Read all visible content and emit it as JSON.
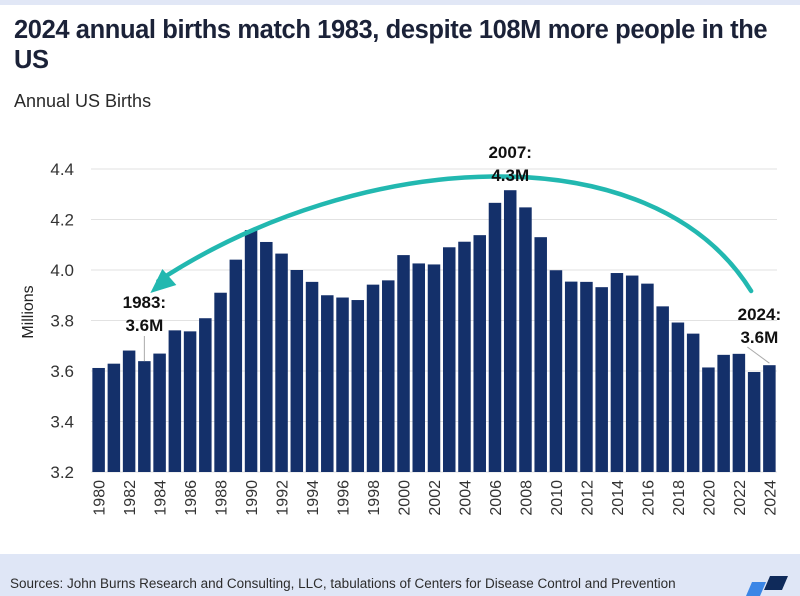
{
  "header": {
    "title": "2024 annual births match 1983, despite 108M more people in the US",
    "subtitle": "Annual US Births"
  },
  "footer": {
    "source": "Sources: John Burns Research and Consulting, LLC, tabulations of Centers for Disease Control and Prevention",
    "logo": "company-logo"
  },
  "colors": {
    "bar": "#14306a",
    "arrow": "#22b8b0",
    "gridline": "#e2e2e2",
    "footer_bg": "#dfe6f6"
  },
  "chart_data": {
    "type": "bar",
    "title": "Annual US Births",
    "xlabel": "",
    "ylabel": "Millions",
    "ylim": [
      3.2,
      4.4
    ],
    "yticks": [
      3.2,
      3.4,
      3.6,
      3.8,
      4.0,
      4.2,
      4.4
    ],
    "ytick_labels": [
      "3.2",
      "3.4",
      "3.6",
      "3.8",
      "4.0",
      "4.2",
      "4.4"
    ],
    "grid": true,
    "categories": [
      1980,
      1981,
      1982,
      1983,
      1984,
      1985,
      1986,
      1987,
      1988,
      1989,
      1990,
      1991,
      1992,
      1993,
      1994,
      1995,
      1996,
      1997,
      1998,
      1999,
      2000,
      2001,
      2002,
      2003,
      2004,
      2005,
      2006,
      2007,
      2008,
      2009,
      2010,
      2011,
      2012,
      2013,
      2014,
      2015,
      2016,
      2017,
      2018,
      2019,
      2020,
      2021,
      2022,
      2023,
      2024
    ],
    "xtick_labels": [
      "1980",
      "1982",
      "1984",
      "1986",
      "1988",
      "1990",
      "1992",
      "1994",
      "1996",
      "1998",
      "2000",
      "2002",
      "2004",
      "2006",
      "2008",
      "2010",
      "2012",
      "2014",
      "2016",
      "2018",
      "2020",
      "2022",
      "2024"
    ],
    "values": [
      3.612,
      3.629,
      3.681,
      3.639,
      3.669,
      3.761,
      3.757,
      3.809,
      3.91,
      4.041,
      4.158,
      4.111,
      4.065,
      4.0,
      3.953,
      3.9,
      3.891,
      3.881,
      3.942,
      3.959,
      4.059,
      4.026,
      4.022,
      4.09,
      4.112,
      4.138,
      4.266,
      4.316,
      4.248,
      4.13,
      3.999,
      3.954,
      3.953,
      3.932,
      3.988,
      3.978,
      3.946,
      3.856,
      3.792,
      3.748,
      3.614,
      3.664,
      3.668,
      3.596,
      3.623
    ],
    "annotations": [
      {
        "year": 1983,
        "line1": "1983:",
        "line2": "3.6M"
      },
      {
        "year": 2007,
        "line1": "2007:",
        "line2": "4.3M"
      },
      {
        "year": 2024,
        "line1": "2024:",
        "line2": "3.6M"
      }
    ],
    "arrow": {
      "from_year": 2023,
      "to_year": 1983,
      "description": "curved arrow from 2024 back to 1983"
    }
  }
}
